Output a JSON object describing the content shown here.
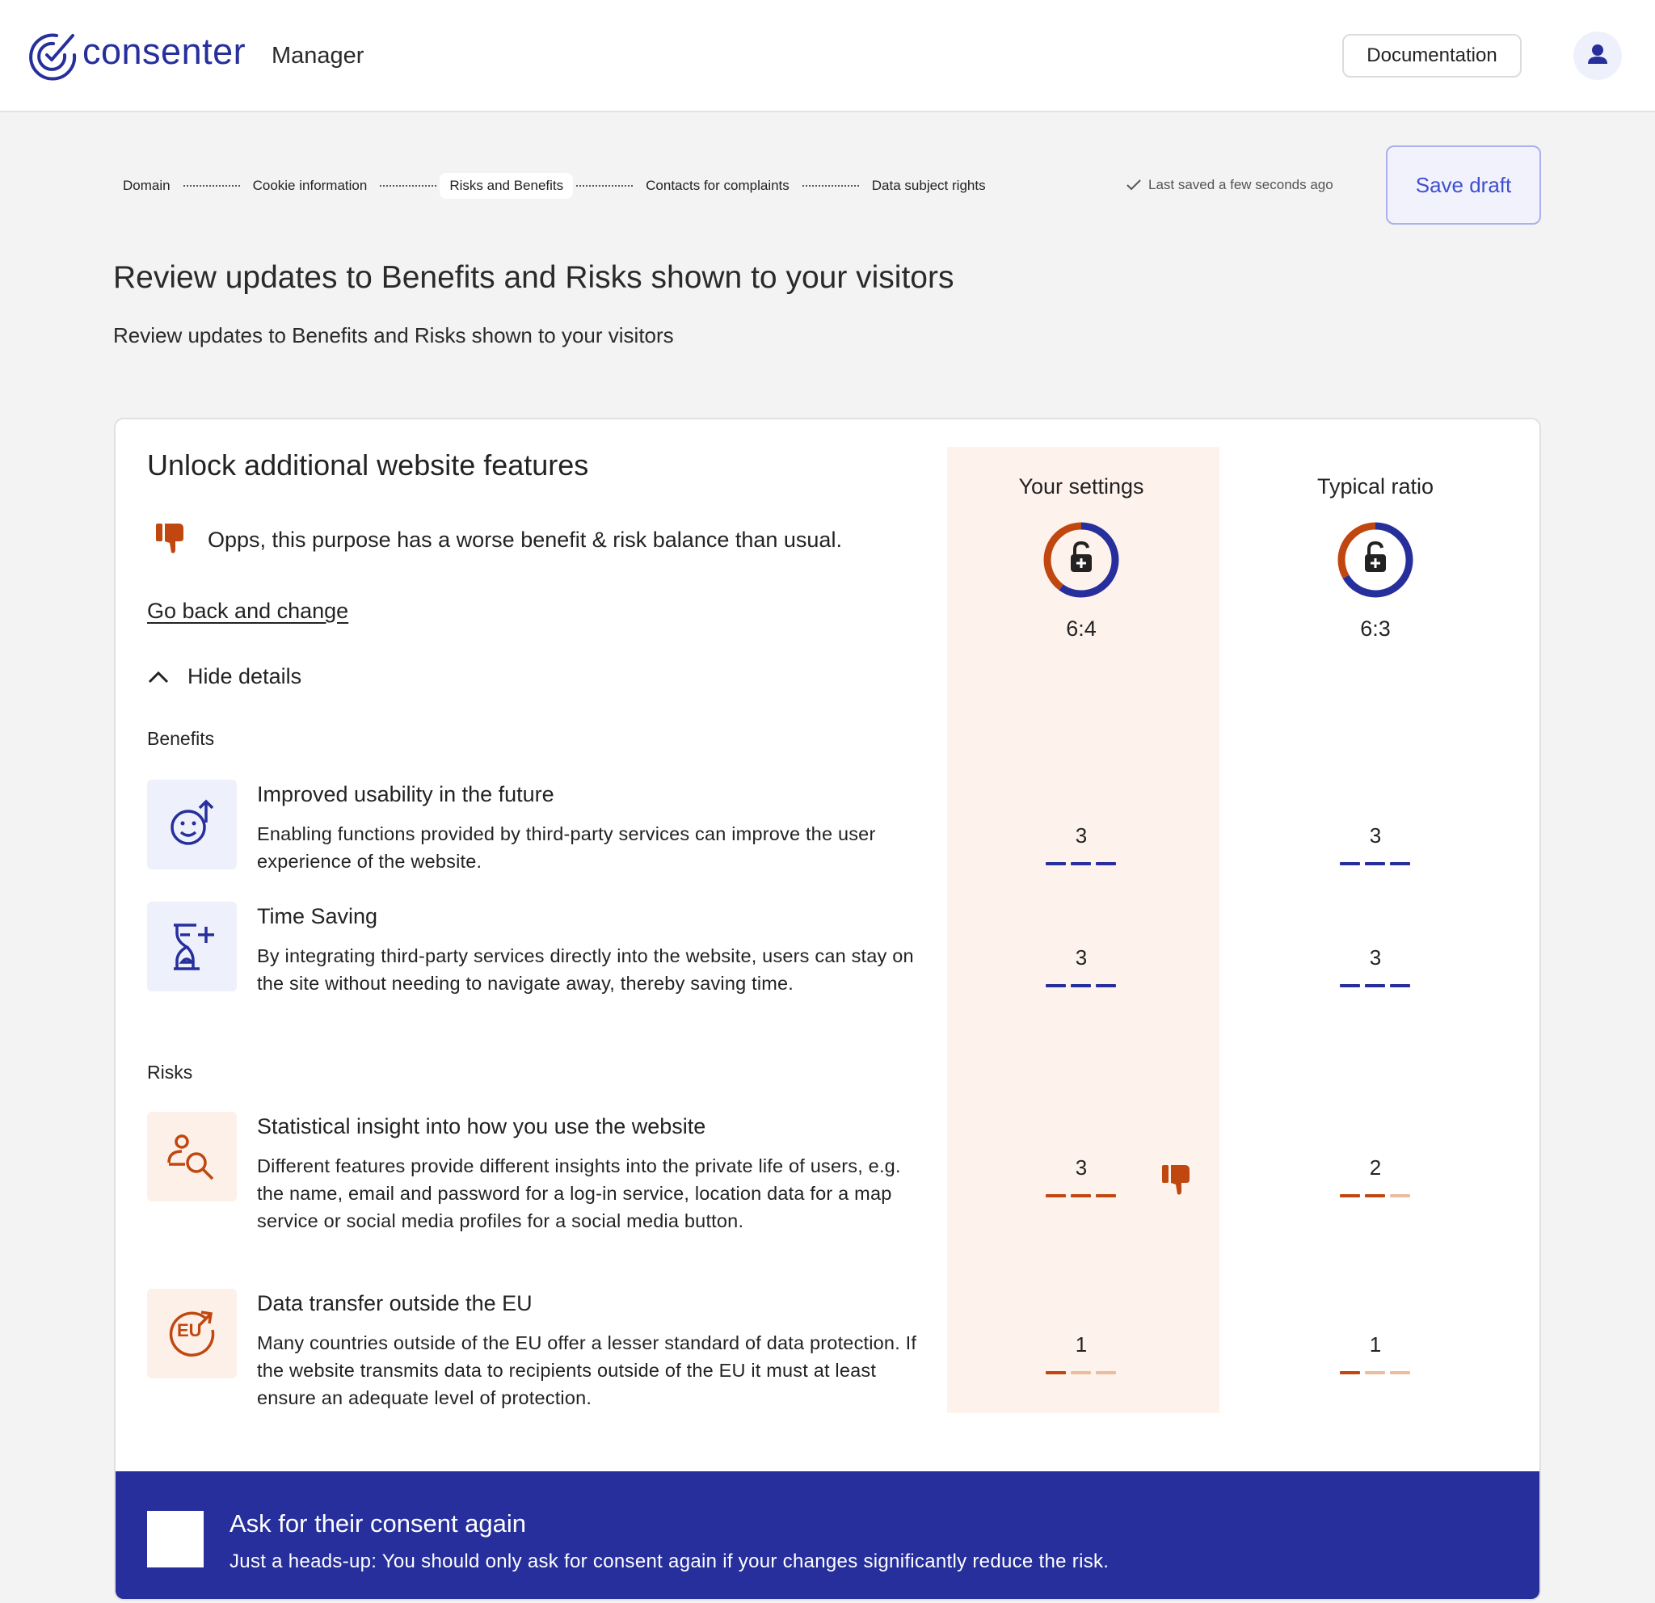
{
  "header": {
    "logo": "consenter",
    "product": "Manager",
    "documentation": "Documentation"
  },
  "stepper": {
    "steps": [
      "Domain",
      "Cookie information",
      "Risks and Benefits",
      "Contacts for complaints",
      "Data subject rights"
    ],
    "active": 2,
    "saved": "Last saved a few seconds ago",
    "save": "Save draft"
  },
  "page": {
    "title": "Review updates to Benefits and Risks shown to your visitors",
    "subtitle": "Review updates to Benefits and Risks shown to your visitors"
  },
  "card": {
    "title": "Unlock additional website features",
    "warning": "Opps, this purpose has a worse benefit & risk balance than usual.",
    "back": "Go back and change",
    "toggle": "Hide details",
    "columns": [
      {
        "title": "Your settings",
        "ratio": {
          "label": "6:4",
          "benefit": 6,
          "risk": 4
        }
      },
      {
        "title": "Typical ratio",
        "ratio": {
          "label": "6:3",
          "benefit": 6,
          "risk": 3
        }
      }
    ],
    "sections": [
      {
        "label": "Benefits",
        "color": "#262f9c",
        "muted": "#c7cbf0",
        "background": "#eef0fb",
        "items": [
          {
            "title": "Improved usability in the future",
            "description": "Enabling functions provided by third-party services can improve the user experience of the website.",
            "values": [
              3,
              3
            ]
          },
          {
            "title": "Time Saving",
            "description": "By integrating third-party services directly into the website, users can stay on the site without needing to navigate away, thereby saving time.",
            "values": [
              3,
              3
            ]
          }
        ]
      },
      {
        "label": "Risks",
        "color": "#c0470f",
        "muted": "#ebbd9f",
        "background": "#fdf0e8",
        "items": [
          {
            "title": "Statistical insight into how you use the website",
            "description": "Different features provide different insights into the private life of users, e.g. the name, email and password for a log-in service, location data for a map service or social media profiles for a social media button.",
            "values": [
              3,
              2
            ]
          },
          {
            "title": "Data transfer outside the EU",
            "badge": "EU",
            "description": "Many countries outside of the EU offer a lesser standard of data protection. If the website transmits data to recipients outside of the EU it must at least ensure an adequate level of protection.",
            "values": [
              1,
              1
            ]
          }
        ]
      }
    ]
  },
  "banner": {
    "title": "Ask for their consent again",
    "note": "Just a heads-up: You should only ask for consent again if your changes significantly reduce the risk."
  }
}
